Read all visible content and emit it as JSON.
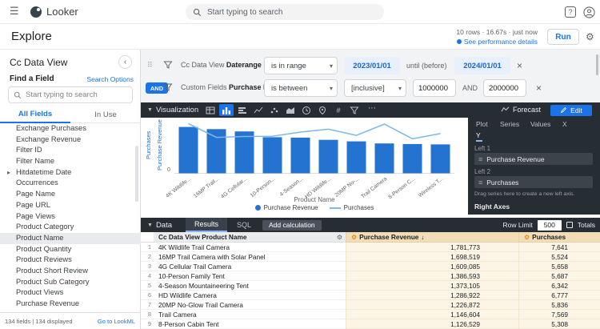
{
  "topbar": {
    "logo_text": "Looker",
    "search_placeholder": "Start typing to search"
  },
  "header": {
    "title": "Explore",
    "status": "10 rows · 16.67s · just now",
    "perf_link": "See performance details",
    "run_label": "Run"
  },
  "sidebar": {
    "title": "Cc Data View",
    "find_label": "Find a Field",
    "search_options": "Search Options",
    "search_placeholder": "Start typing to search",
    "tabs": [
      "All Fields",
      "In Use"
    ],
    "active_tab": "All Fields",
    "fields": [
      {
        "label": "Exchange Purchases"
      },
      {
        "label": "Exchange Revenue"
      },
      {
        "label": "Filter ID"
      },
      {
        "label": "Filter Name"
      },
      {
        "label": "Hitdatetime Date",
        "expandable": true
      },
      {
        "label": "Occurrences"
      },
      {
        "label": "Page Name"
      },
      {
        "label": "Page URL"
      },
      {
        "label": "Page Views"
      },
      {
        "label": "Product Category"
      },
      {
        "label": "Product Name",
        "selected": true
      },
      {
        "label": "Product Quantity"
      },
      {
        "label": "Product Reviews"
      },
      {
        "label": "Product Short Review"
      },
      {
        "label": "Product Sub Category"
      },
      {
        "label": "Product Views"
      },
      {
        "label": "Purchase Revenue"
      }
    ],
    "footer_left": "134 fields | 134 displayed",
    "footer_right": "Go to LookML"
  },
  "filters": {
    "rows": [
      {
        "field_prefix": "Cc Data View ",
        "field_name": "Daterange Date",
        "operator": "is in range",
        "value1": "2023/01/01",
        "connector": "until (before)",
        "value2": "2024/01/01"
      },
      {
        "prefix": "AND",
        "field_prefix": "Custom Fields ",
        "field_name": "Purchase Revenue",
        "operator": "is between",
        "modifier": "[inclusive]",
        "value1": "1000000",
        "connector": "AND",
        "value2": "2000000"
      }
    ]
  },
  "visualization": {
    "title": "Visualization",
    "viz_types": [
      {
        "name": "table"
      },
      {
        "name": "bar",
        "active": true
      },
      {
        "name": "column"
      },
      {
        "name": "line"
      },
      {
        "name": "scatter"
      },
      {
        "name": "area"
      },
      {
        "name": "clock"
      },
      {
        "name": "pin"
      },
      {
        "name": "number"
      },
      {
        "name": "funnel"
      }
    ],
    "more_label": "⋯",
    "forecast_label": "Forecast",
    "edit_label": "Edit",
    "edit_tabs": [
      "Plot",
      "Series",
      "Values",
      "X",
      "Y"
    ],
    "active_edit_tab": "Y",
    "left1_label": "Left 1",
    "left1_chip": "Purchase Revenue",
    "left2_label": "Left 2",
    "left2_chip": "Purchases",
    "drag_hint": "Drag series here to create a new left axis.",
    "right_axes_label": "Right Axes",
    "y_axis_label_outer": "Purchases",
    "y_axis_label_inner": "Purchase Revenue",
    "y_tick_zero": "0"
  },
  "chart_data": {
    "type": "bar",
    "note": "bar series with line overlay",
    "categories": [
      "4K Wildlife...",
      "16MP Trail...",
      "4G Cellular...",
      "10-Person...",
      "4-Season...",
      "HD Wildlife...",
      "20MP No-...",
      "Trail Camera",
      "8-Person C...",
      "Wireless T..."
    ],
    "series": [
      {
        "name": "Purchase Revenue",
        "type": "bar",
        "values": [
          1781773,
          1698519,
          1609085,
          1386593,
          1373105,
          1286922,
          1226872,
          1146604,
          1126529,
          1110000
        ]
      },
      {
        "name": "Purchases",
        "type": "line",
        "values": [
          7641,
          5524,
          5658,
          5687,
          6342,
          6777,
          5836,
          7569,
          5308,
          6100
        ]
      }
    ],
    "xlabel": "Product Name",
    "axes": {
      "left1_label": "Purchase Revenue",
      "left1_max": 2000000,
      "left2_label": "Purchases",
      "left2_max": 8000
    },
    "legend_position": "bottom"
  },
  "data_section": {
    "title": "Data",
    "tabs": [
      "Results",
      "SQL"
    ],
    "active_tab": "Results",
    "add_calc_label": "Add calculation",
    "row_limit_label": "Row Limit",
    "row_limit_value": "500",
    "totals_label": "Totals"
  },
  "table": {
    "columns": [
      "Cc Data View Product Name",
      "Purchase Revenue",
      "Purchases"
    ],
    "sorted_column": "Purchase Revenue",
    "sort_direction": "desc",
    "rows": [
      {
        "n": "1",
        "name": "4K Wildlife Trail Camera",
        "revenue": "1,781,773",
        "purchases": "7,641"
      },
      {
        "n": "2",
        "name": "16MP Trail Camera with Solar Panel",
        "revenue": "1,698,519",
        "purchases": "5,524"
      },
      {
        "n": "3",
        "name": "4G Cellular Trail Camera",
        "revenue": "1,609,085",
        "purchases": "5,658"
      },
      {
        "n": "4",
        "name": "10-Person Family Tent",
        "revenue": "1,386,593",
        "purchases": "5,687"
      },
      {
        "n": "5",
        "name": "4-Season Mountaineering Tent",
        "revenue": "1,373,105",
        "purchases": "6,342"
      },
      {
        "n": "6",
        "name": "HD Wildlife Camera",
        "revenue": "1,286,922",
        "purchases": "6,777"
      },
      {
        "n": "7",
        "name": "20MP No-Glow Trail Camera",
        "revenue": "1,226,872",
        "purchases": "5,836"
      },
      {
        "n": "8",
        "name": "Trail Camera",
        "revenue": "1,146,604",
        "purchases": "7,569"
      },
      {
        "n": "9",
        "name": "8-Person Cabin Tent",
        "revenue": "1,126,529",
        "purchases": "5,308"
      }
    ]
  },
  "icons": {
    "menu": "hamburger ☰",
    "search": "magnifier",
    "help": "question-mark",
    "account": "person",
    "settings": "gear ⚙",
    "close": "×",
    "collapse_panel": "chevron-left-circle ‹",
    "expand_field": "▸",
    "drag_grip": "⠿",
    "filter": "funnel",
    "caret_down": "▾",
    "sort_desc": "↓",
    "series_drag": "≡",
    "edit": "pencil"
  },
  "colors": {
    "accent": "#1a73e8",
    "dark_panel": "#262d33",
    "bar": "#2573d1",
    "line": "#7cb9e8",
    "filter_value_bg": "#e8f0fe",
    "filter_value_text": "#1967d2",
    "measure_header_bg": "#f3ddb6",
    "measure_cell_bg": "#fcf4e5",
    "selected_field_bg": "#e8eaed"
  }
}
